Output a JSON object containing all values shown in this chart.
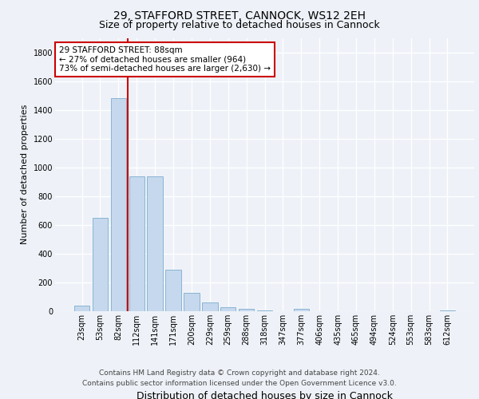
{
  "title1": "29, STAFFORD STREET, CANNOCK, WS12 2EH",
  "title2": "Size of property relative to detached houses in Cannock",
  "xlabel": "Distribution of detached houses by size in Cannock",
  "ylabel": "Number of detached properties",
  "bar_labels": [
    "23sqm",
    "53sqm",
    "82sqm",
    "112sqm",
    "141sqm",
    "171sqm",
    "200sqm",
    "229sqm",
    "259sqm",
    "288sqm",
    "318sqm",
    "347sqm",
    "377sqm",
    "406sqm",
    "435sqm",
    "465sqm",
    "494sqm",
    "524sqm",
    "553sqm",
    "583sqm",
    "612sqm"
  ],
  "bar_values": [
    40,
    650,
    1480,
    935,
    940,
    290,
    125,
    60,
    25,
    15,
    5,
    2,
    15,
    2,
    0,
    0,
    0,
    0,
    0,
    0,
    5
  ],
  "bar_color": "#c5d8ed",
  "bar_edgecolor": "#8ab4d4",
  "vline_color": "#cc0000",
  "annotation_text": "29 STAFFORD STREET: 88sqm\n← 27% of detached houses are smaller (964)\n73% of semi-detached houses are larger (2,630) →",
  "annotation_box_edgecolor": "#cc0000",
  "ylim": [
    0,
    1900
  ],
  "yticks": [
    0,
    200,
    400,
    600,
    800,
    1000,
    1200,
    1400,
    1600,
    1800
  ],
  "footer1": "Contains HM Land Registry data © Crown copyright and database right 2024.",
  "footer2": "Contains public sector information licensed under the Open Government Licence v3.0.",
  "bg_color": "#eef2f8",
  "plot_bg_color": "#eef2f8",
  "title1_fontsize": 10,
  "title2_fontsize": 9,
  "ylabel_fontsize": 8,
  "xlabel_fontsize": 9,
  "tick_fontsize": 7,
  "footer_fontsize": 6.5
}
